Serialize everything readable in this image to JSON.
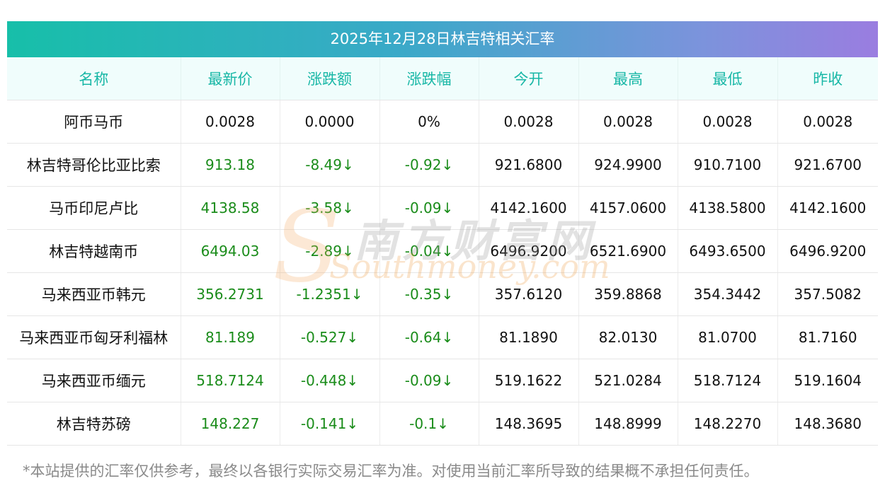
{
  "title": "2025年12月28日林吉特相关汇率",
  "columns": [
    "名称",
    "最新价",
    "涨跌额",
    "涨跌幅",
    "今开",
    "最高",
    "最低",
    "昨收"
  ],
  "rows": [
    {
      "name": "阿币马币",
      "latest": "0.0028",
      "change": "0.0000",
      "pct": "0%",
      "open": "0.0028",
      "high": "0.0028",
      "low": "0.0028",
      "prev": "0.0028",
      "colored": false
    },
    {
      "name": "林吉特哥伦比亚比索",
      "latest": "913.18",
      "change": "-8.49↓",
      "pct": "-0.92↓",
      "open": "921.6800",
      "high": "924.9900",
      "low": "910.7100",
      "prev": "921.6700",
      "colored": true
    },
    {
      "name": "马币印尼卢比",
      "latest": "4138.58",
      "change": "-3.58↓",
      "pct": "-0.09↓",
      "open": "4142.1600",
      "high": "4157.0600",
      "low": "4138.5800",
      "prev": "4142.1600",
      "colored": true
    },
    {
      "name": "林吉特越南币",
      "latest": "6494.03",
      "change": "-2.89↓",
      "pct": "-0.04↓",
      "open": "6496.9200",
      "high": "6521.6900",
      "low": "6493.6500",
      "prev": "6496.9200",
      "colored": true
    },
    {
      "name": "马来西亚币韩元",
      "latest": "356.2731",
      "change": "-1.2351↓",
      "pct": "-0.35↓",
      "open": "357.6120",
      "high": "359.8868",
      "low": "354.3442",
      "prev": "357.5082",
      "colored": true
    },
    {
      "name": "马来西亚币匈牙利福林",
      "latest": "81.189",
      "change": "-0.527↓",
      "pct": "-0.64↓",
      "open": "81.1890",
      "high": "82.0130",
      "low": "81.0700",
      "prev": "81.7160",
      "colored": true
    },
    {
      "name": "马来西亚币缅元",
      "latest": "518.7124",
      "change": "-0.448↓",
      "pct": "-0.09↓",
      "open": "519.1622",
      "high": "521.0284",
      "low": "518.7124",
      "prev": "519.1604",
      "colored": true
    },
    {
      "name": "林吉特苏磅",
      "latest": "148.227",
      "change": "-0.141↓",
      "pct": "-0.1↓",
      "open": "148.3695",
      "high": "148.8999",
      "low": "148.2270",
      "prev": "148.3680",
      "colored": true
    }
  ],
  "disclaimer": "*本站提供的汇率仅供参考，最终以各银行实际交易汇率为准。对使用当前汇率所导致的结果概不承担任何责任。",
  "watermark": {
    "cn": "南方财富网",
    "en": "Southmoney.com",
    "letter": "S"
  },
  "colors": {
    "accent": "#18b7a6",
    "down": "#1a8c1a",
    "header_bg": "#f0fdfc"
  }
}
